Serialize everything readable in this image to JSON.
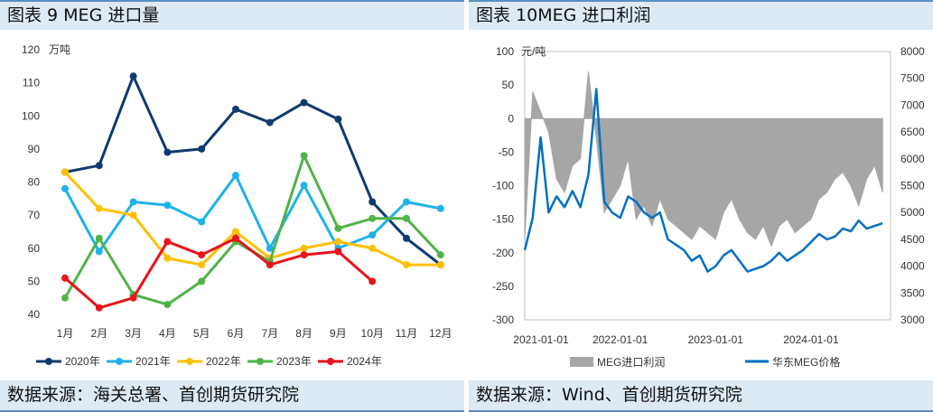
{
  "left": {
    "title": "图表 9 MEG 进口量",
    "source": "数据来源：海关总署、首创期货研究院",
    "chart_data": {
      "type": "line",
      "ylabel": "万吨",
      "ylim": [
        40,
        120
      ],
      "yticks": [
        "120",
        "110",
        "100",
        "90",
        "80",
        "70",
        "60",
        "50",
        "40"
      ],
      "categories": [
        "1月",
        "2月",
        "3月",
        "4月",
        "5月",
        "6月",
        "7月",
        "8月",
        "9月",
        "10月",
        "11月",
        "12月"
      ],
      "legend_position": "bottom",
      "series": [
        {
          "name": "2020年",
          "color": "#0e3a6e",
          "values": [
            83,
            85,
            112,
            89,
            90,
            102,
            98,
            104,
            99,
            74,
            63,
            55
          ]
        },
        {
          "name": "2021年",
          "color": "#1fb2ea",
          "values": [
            78,
            59,
            74,
            73,
            68,
            82,
            60,
            79,
            60,
            64,
            74,
            72
          ]
        },
        {
          "name": "2022年",
          "color": "#ffc000",
          "values": [
            83,
            72,
            70,
            57,
            55,
            65,
            57,
            60,
            62,
            60,
            55,
            55
          ]
        },
        {
          "name": "2023年",
          "color": "#4fb448",
          "values": [
            45,
            63,
            46,
            43,
            50,
            62,
            56,
            88,
            66,
            69,
            69,
            58
          ]
        },
        {
          "name": "2024年",
          "color": "#e8141a",
          "values": [
            51,
            42,
            45,
            62,
            58,
            63,
            55,
            58,
            59,
            50,
            null,
            null
          ]
        }
      ]
    }
  },
  "right": {
    "title": "图表 10MEG 进口利润",
    "source": "数据来源：Wind、首创期货研究院",
    "chart_data": {
      "type": "area",
      "ylabel": "元/吨",
      "ylim_left": [
        -300,
        100
      ],
      "ylim_right": [
        3000,
        8000
      ],
      "yticks_left": [
        "100",
        "50",
        "0",
        "-50",
        "-100",
        "-150",
        "-200",
        "-250",
        "-300"
      ],
      "yticks_right": [
        "8000",
        "7500",
        "7000",
        "6500",
        "6000",
        "5500",
        "5000",
        "4500",
        "4000",
        "3500",
        "3000"
      ],
      "xticks": [
        "2021-01-01",
        "2022-01-01",
        "2023-01-01",
        "2024-01-01"
      ],
      "legend_position": "bottom",
      "series": [
        {
          "name": "MEG进口利润",
          "color": "#a6a6a6",
          "axis": "left",
          "x": [
            "2021-01",
            "2021-02",
            "2021-03",
            "2021-04",
            "2021-05",
            "2021-06",
            "2021-07",
            "2021-08",
            "2021-09",
            "2021-10",
            "2021-11",
            "2021-12",
            "2022-01",
            "2022-02",
            "2022-03",
            "2022-04",
            "2022-05",
            "2022-06",
            "2022-07",
            "2022-08",
            "2022-09",
            "2022-10",
            "2022-11",
            "2022-12",
            "2023-01",
            "2023-02",
            "2023-03",
            "2023-04",
            "2023-05",
            "2023-06",
            "2023-07",
            "2023-08",
            "2023-09",
            "2023-10",
            "2023-11",
            "2023-12",
            "2024-01",
            "2024-02",
            "2024-03",
            "2024-04",
            "2024-05",
            "2024-06",
            "2024-07",
            "2024-08",
            "2024-09",
            "2024-10"
          ],
          "values": [
            -180,
            40,
            10,
            -20,
            -90,
            -110,
            -70,
            -60,
            70,
            -30,
            -140,
            -120,
            -100,
            -60,
            -150,
            -130,
            -160,
            -120,
            -150,
            -160,
            -170,
            -180,
            -160,
            -170,
            -180,
            -140,
            -120,
            -150,
            -170,
            -180,
            -160,
            -190,
            -160,
            -150,
            -170,
            -160,
            -150,
            -120,
            -110,
            -90,
            -80,
            -100,
            -130,
            -90,
            -70,
            -110
          ]
        },
        {
          "name": "华东MEG价格",
          "color": "#0070c0",
          "axis": "right",
          "x": [
            "2021-01",
            "2021-02",
            "2021-03",
            "2021-04",
            "2021-05",
            "2021-06",
            "2021-07",
            "2021-08",
            "2021-09",
            "2021-10",
            "2021-11",
            "2021-12",
            "2022-01",
            "2022-02",
            "2022-03",
            "2022-04",
            "2022-05",
            "2022-06",
            "2022-07",
            "2022-08",
            "2022-09",
            "2022-10",
            "2022-11",
            "2022-12",
            "2023-01",
            "2023-02",
            "2023-03",
            "2023-04",
            "2023-05",
            "2023-06",
            "2023-07",
            "2023-08",
            "2023-09",
            "2023-10",
            "2023-11",
            "2023-12",
            "2024-01",
            "2024-02",
            "2024-03",
            "2024-04",
            "2024-05",
            "2024-06",
            "2024-07",
            "2024-08",
            "2024-09",
            "2024-10"
          ],
          "values": [
            4300,
            4900,
            6400,
            5000,
            5300,
            5100,
            5400,
            5100,
            5700,
            7300,
            5200,
            5000,
            4900,
            5300,
            5200,
            5000,
            4900,
            5000,
            4500,
            4400,
            4300,
            4100,
            4200,
            3900,
            4000,
            4200,
            4300,
            4100,
            3900,
            3950,
            4000,
            4100,
            4250,
            4100,
            4200,
            4300,
            4450,
            4600,
            4500,
            4550,
            4700,
            4650,
            4850,
            4700,
            4750,
            4800
          ]
        }
      ]
    }
  }
}
